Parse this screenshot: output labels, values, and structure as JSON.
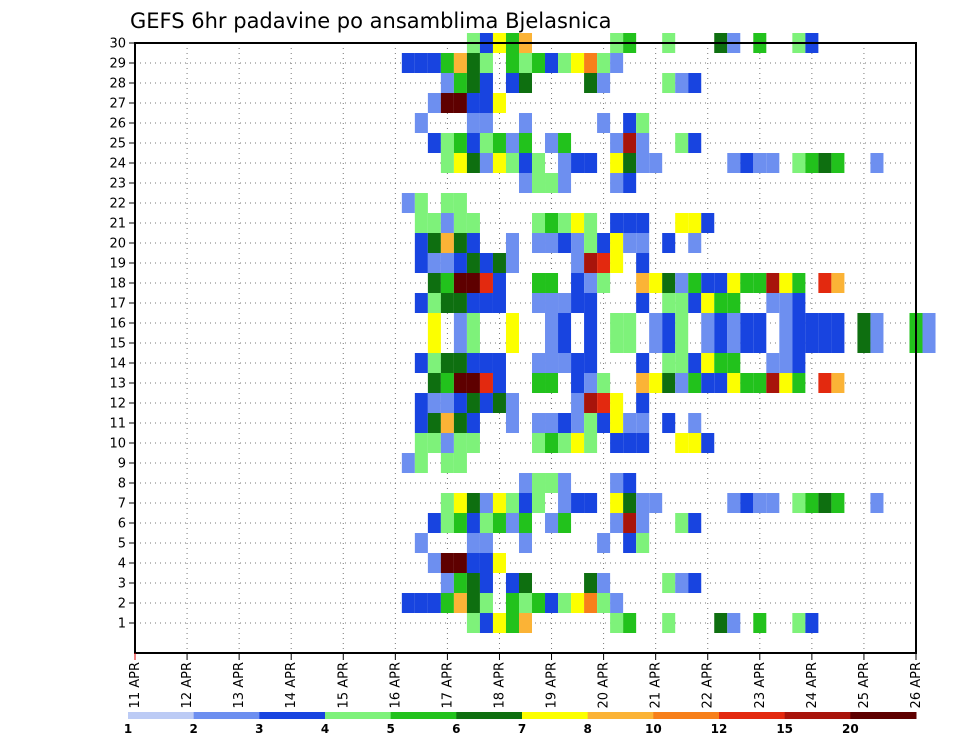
{
  "chart_data": {
    "type": "heatmap",
    "title": "GEFS 6hr padavine po ansamblima Bjelasnica",
    "xlabel": "",
    "ylabel": "",
    "x_ticks": [
      "11 APR",
      "12 APR",
      "13 APR",
      "14 APR",
      "15 APR",
      "16 APR",
      "17 APR",
      "18 APR",
      "19 APR",
      "20 APR",
      "21 APR",
      "22 APR",
      "23 APR",
      "24 APR",
      "25 APR",
      "26 APR"
    ],
    "y_ticks": [
      "1",
      "2",
      "3",
      "4",
      "5",
      "6",
      "7",
      "8",
      "9",
      "10",
      "11",
      "12",
      "13",
      "14",
      "15",
      "16",
      "17",
      "18",
      "19",
      "20",
      "21",
      "22",
      "23",
      "24",
      "25",
      "26",
      "27",
      "28",
      "29",
      "30"
    ],
    "time_steps_per_day": 4,
    "ensemble_members": 30,
    "grid": true,
    "colorbar": {
      "position": "bottom",
      "boundaries": [
        "1",
        "2",
        "3",
        "4",
        "5",
        "6",
        "7",
        "8",
        "10",
        "12",
        "15",
        "20"
      ],
      "colors": [
        "#bccbf5",
        "#6d8ff0",
        "#1844e0",
        "#7ef27a",
        "#22c21c",
        "#0e6f10",
        "#fcff00",
        "#fbb336",
        "#f77f1a",
        "#e3290f",
        "#a8140b",
        "#5e0000"
      ]
    },
    "cells": [
      [
        1,
        17.5,
        3
      ],
      [
        1,
        17.75,
        2
      ],
      [
        1,
        18,
        6
      ],
      [
        1,
        18.25,
        4
      ],
      [
        1,
        18.5,
        7
      ],
      [
        1,
        20.25,
        3
      ],
      [
        1,
        20.5,
        4
      ],
      [
        1,
        21.25,
        3
      ],
      [
        1,
        22.25,
        5
      ],
      [
        1,
        22.5,
        1
      ],
      [
        1,
        23,
        4
      ],
      [
        1,
        23.75,
        3
      ],
      [
        1,
        24,
        2
      ],
      [
        2,
        16.25,
        2
      ],
      [
        2,
        16.5,
        2
      ],
      [
        2,
        16.75,
        2
      ],
      [
        2,
        17,
        4
      ],
      [
        2,
        17.25,
        7
      ],
      [
        2,
        17.5,
        5
      ],
      [
        2,
        17.75,
        3
      ],
      [
        2,
        18.25,
        4
      ],
      [
        2,
        18.5,
        3
      ],
      [
        2,
        18.75,
        4
      ],
      [
        2,
        19,
        2
      ],
      [
        2,
        19.25,
        3
      ],
      [
        2,
        19.5,
        6
      ],
      [
        2,
        19.75,
        8
      ],
      [
        2,
        20,
        3
      ],
      [
        2,
        20.25,
        1
      ],
      [
        3,
        17,
        1
      ],
      [
        3,
        17.25,
        4
      ],
      [
        3,
        17.5,
        5
      ],
      [
        3,
        17.75,
        2
      ],
      [
        3,
        18.25,
        2
      ],
      [
        3,
        18.5,
        5
      ],
      [
        3,
        19.75,
        5
      ],
      [
        3,
        20,
        1
      ],
      [
        3,
        21.25,
        3
      ],
      [
        3,
        21.5,
        1
      ],
      [
        3,
        21.75,
        2
      ],
      [
        4,
        16.75,
        1
      ],
      [
        4,
        17,
        11
      ],
      [
        4,
        17.25,
        11
      ],
      [
        4,
        17.5,
        2
      ],
      [
        4,
        17.75,
        2
      ],
      [
        4,
        18,
        6
      ],
      [
        5,
        16.5,
        1
      ],
      [
        5,
        17.5,
        1
      ],
      [
        5,
        17.75,
        1
      ],
      [
        5,
        18.5,
        1
      ],
      [
        5,
        20,
        1
      ],
      [
        5,
        20.5,
        2
      ],
      [
        5,
        20.75,
        3
      ],
      [
        6,
        16.75,
        2
      ],
      [
        6,
        17,
        3
      ],
      [
        6,
        17.25,
        4
      ],
      [
        6,
        17.5,
        2
      ],
      [
        6,
        17.75,
        3
      ],
      [
        6,
        18,
        4
      ],
      [
        6,
        18.25,
        1
      ],
      [
        6,
        18.5,
        4
      ],
      [
        6,
        19,
        1
      ],
      [
        6,
        19.25,
        4
      ],
      [
        6,
        20.25,
        1
      ],
      [
        6,
        20.5,
        10
      ],
      [
        6,
        20.75,
        1
      ],
      [
        6,
        21.5,
        3
      ],
      [
        6,
        21.75,
        2
      ],
      [
        7,
        17,
        3
      ],
      [
        7,
        17.25,
        6
      ],
      [
        7,
        17.5,
        5
      ],
      [
        7,
        17.75,
        1
      ],
      [
        7,
        18,
        6
      ],
      [
        7,
        18.25,
        3
      ],
      [
        7,
        18.5,
        2
      ],
      [
        7,
        18.75,
        3
      ],
      [
        7,
        19.25,
        1
      ],
      [
        7,
        19.5,
        2
      ],
      [
        7,
        19.75,
        2
      ],
      [
        7,
        20.25,
        6
      ],
      [
        7,
        20.5,
        5
      ],
      [
        7,
        20.75,
        1
      ],
      [
        7,
        21,
        1
      ],
      [
        7,
        22.5,
        1
      ],
      [
        7,
        22.75,
        2
      ],
      [
        7,
        23,
        1
      ],
      [
        7,
        23.25,
        1
      ],
      [
        7,
        23.75,
        3
      ],
      [
        7,
        24,
        4
      ],
      [
        7,
        24.25,
        5
      ],
      [
        7,
        24.5,
        4
      ],
      [
        7,
        25.25,
        1
      ],
      [
        8,
        18.5,
        1
      ],
      [
        8,
        18.75,
        3
      ],
      [
        8,
        19,
        3
      ],
      [
        8,
        19.25,
        1
      ],
      [
        8,
        20.25,
        1
      ],
      [
        8,
        20.5,
        2
      ],
      [
        9,
        16.25,
        1
      ],
      [
        9,
        16.5,
        3
      ],
      [
        9,
        17,
        3
      ],
      [
        9,
        17.25,
        3
      ],
      [
        10,
        16.5,
        3
      ],
      [
        10,
        16.75,
        3
      ],
      [
        10,
        17,
        1
      ],
      [
        10,
        17.25,
        3
      ],
      [
        10,
        17.5,
        3
      ],
      [
        10,
        18.75,
        3
      ],
      [
        10,
        19,
        4
      ],
      [
        10,
        19.25,
        3
      ],
      [
        10,
        19.5,
        6
      ],
      [
        10,
        19.75,
        3
      ],
      [
        10,
        20.25,
        2
      ],
      [
        10,
        20.5,
        2
      ],
      [
        10,
        20.75,
        2
      ],
      [
        10,
        21.5,
        6
      ],
      [
        10,
        21.75,
        6
      ],
      [
        10,
        22,
        2
      ],
      [
        11,
        16.5,
        2
      ],
      [
        11,
        16.75,
        5
      ],
      [
        11,
        17,
        7
      ],
      [
        11,
        17.25,
        5
      ],
      [
        11,
        17.5,
        2
      ],
      [
        11,
        18.25,
        1
      ],
      [
        11,
        18.75,
        1
      ],
      [
        11,
        19,
        1
      ],
      [
        11,
        19.25,
        2
      ],
      [
        11,
        19.5,
        1
      ],
      [
        11,
        19.75,
        3
      ],
      [
        11,
        20,
        2
      ],
      [
        11,
        20.25,
        6
      ],
      [
        11,
        20.5,
        1
      ],
      [
        11,
        20.75,
        1
      ],
      [
        11,
        21.25,
        2
      ],
      [
        11,
        21.75,
        1
      ],
      [
        12,
        16.5,
        2
      ],
      [
        12,
        16.75,
        1
      ],
      [
        12,
        17,
        1
      ],
      [
        12,
        17.25,
        2
      ],
      [
        12,
        17.5,
        5
      ],
      [
        12,
        17.75,
        2
      ],
      [
        12,
        18,
        5
      ],
      [
        12,
        18.25,
        1
      ],
      [
        12,
        19.5,
        1
      ],
      [
        12,
        19.75,
        10
      ],
      [
        12,
        20,
        9
      ],
      [
        12,
        20.25,
        6
      ],
      [
        12,
        20.75,
        2
      ],
      [
        13,
        16.75,
        5
      ],
      [
        13,
        17,
        4
      ],
      [
        13,
        17.25,
        11
      ],
      [
        13,
        17.5,
        11
      ],
      [
        13,
        17.75,
        9
      ],
      [
        13,
        18,
        2
      ],
      [
        13,
        18.75,
        4
      ],
      [
        13,
        19,
        4
      ],
      [
        13,
        19.5,
        2
      ],
      [
        13,
        19.75,
        1
      ],
      [
        13,
        20,
        3
      ],
      [
        13,
        20.75,
        7
      ],
      [
        13,
        21,
        6
      ],
      [
        13,
        21.25,
        5
      ],
      [
        13,
        21.5,
        1
      ],
      [
        13,
        21.75,
        4
      ],
      [
        13,
        22,
        2
      ],
      [
        13,
        22.25,
        2
      ],
      [
        13,
        22.5,
        6
      ],
      [
        13,
        22.75,
        4
      ],
      [
        13,
        23,
        4
      ],
      [
        13,
        23.25,
        10
      ],
      [
        13,
        23.5,
        6
      ],
      [
        13,
        23.75,
        4
      ],
      [
        13,
        24.25,
        9
      ],
      [
        13,
        24.5,
        7
      ],
      [
        14,
        16.5,
        2
      ],
      [
        14,
        16.75,
        3
      ],
      [
        14,
        17,
        5
      ],
      [
        14,
        17.25,
        5
      ],
      [
        14,
        17.5,
        2
      ],
      [
        14,
        17.75,
        2
      ],
      [
        14,
        18,
        2
      ],
      [
        14,
        18.75,
        1
      ],
      [
        14,
        19,
        1
      ],
      [
        14,
        19.25,
        1
      ],
      [
        14,
        19.5,
        2
      ],
      [
        14,
        19.75,
        2
      ],
      [
        14,
        20.75,
        2
      ],
      [
        14,
        21.25,
        3
      ],
      [
        14,
        21.5,
        3
      ],
      [
        14,
        21.75,
        2
      ],
      [
        14,
        22,
        6
      ],
      [
        14,
        22.25,
        4
      ],
      [
        14,
        22.5,
        4
      ],
      [
        14,
        23.25,
        1
      ],
      [
        14,
        23.5,
        1
      ],
      [
        14,
        23.75,
        2
      ],
      [
        15,
        16.75,
        6
      ],
      [
        15,
        17.25,
        1
      ],
      [
        15,
        17.5,
        3
      ],
      [
        15,
        18.25,
        6
      ],
      [
        15,
        19,
        1
      ],
      [
        15,
        19.25,
        2
      ],
      [
        15,
        19.75,
        2
      ],
      [
        15,
        20.25,
        3
      ],
      [
        15,
        20.5,
        3
      ],
      [
        15,
        21,
        1
      ],
      [
        15,
        21.25,
        2
      ],
      [
        15,
        21.5,
        3
      ],
      [
        15,
        22,
        1
      ],
      [
        15,
        22.25,
        2
      ],
      [
        15,
        22.5,
        1
      ],
      [
        15,
        22.75,
        2
      ],
      [
        15,
        23,
        2
      ],
      [
        15,
        23.5,
        1
      ],
      [
        15,
        23.75,
        2
      ],
      [
        15,
        24,
        2
      ],
      [
        15,
        24.25,
        2
      ],
      [
        15,
        24.5,
        2
      ],
      [
        15,
        25,
        5
      ],
      [
        15,
        25.25,
        1
      ],
      [
        15,
        26,
        4
      ],
      [
        15,
        26.25,
        1
      ]
    ]
  }
}
